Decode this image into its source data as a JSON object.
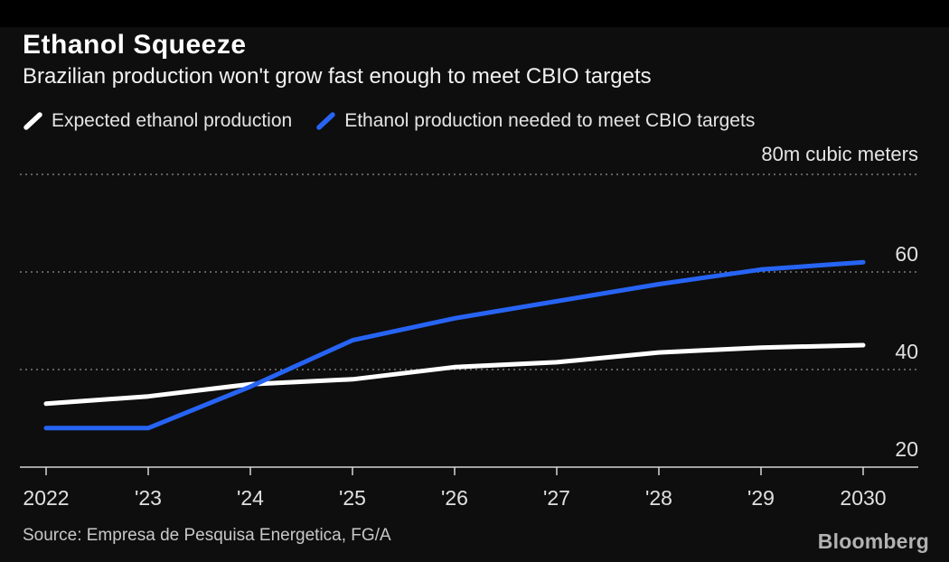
{
  "header": {
    "title": "Ethanol Squeeze",
    "subtitle": "Brazilian production won't grow fast enough to meet CBIO targets"
  },
  "legend": [
    {
      "label": "Expected ethanol production",
      "color": "#ffffff"
    },
    {
      "label": "Ethanol production needed to meet CBIO targets",
      "color": "#2764f4"
    }
  ],
  "chart_data": {
    "type": "line",
    "x": [
      2022,
      2023,
      2024,
      2025,
      2026,
      2027,
      2028,
      2029,
      2030
    ],
    "x_tick_labels": [
      "2022",
      "'23",
      "'24",
      "'25",
      "'26",
      "'27",
      "'28",
      "'29",
      "2030"
    ],
    "series": [
      {
        "name": "Expected ethanol production",
        "color": "#ffffff",
        "values": [
          33,
          34.5,
          37,
          38,
          40.5,
          41.5,
          43.5,
          44.5,
          45
        ]
      },
      {
        "name": "Ethanol production needed to meet CBIO targets",
        "color": "#2764f4",
        "values": [
          28,
          28,
          36.5,
          46,
          50.5,
          54,
          57.5,
          60.5,
          62
        ]
      }
    ],
    "y_axis": {
      "unit_label": "80m cubic meters",
      "ticks": [
        20,
        40,
        60,
        80
      ],
      "gridlines": [
        40,
        60,
        80
      ],
      "range": [
        20,
        80
      ],
      "label_position": "right"
    },
    "grid": "dotted horizontal",
    "legend_position": "top-left",
    "title": "Ethanol Squeeze",
    "xlabel": "",
    "ylabel": "m cubic meters"
  },
  "footer": {
    "source": "Source: Empresa de Pesquisa Energetica, FG/A",
    "brand": "Bloomberg"
  }
}
